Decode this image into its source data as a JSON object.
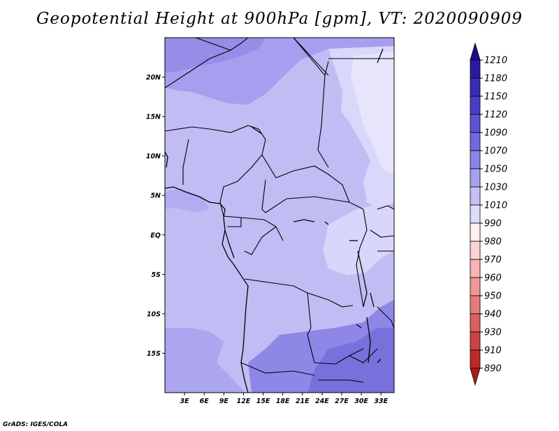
{
  "title": "Geopotential Height at 900hPa [gpm], VT: 2020090909",
  "credit": "GrADS: IGES/COLA",
  "map": {
    "lon_range": [
      0,
      35
    ],
    "lat_range": [
      -20,
      25
    ],
    "lon_ticks": [
      {
        "value": 3,
        "label": "3E"
      },
      {
        "value": 6,
        "label": "6E"
      },
      {
        "value": 9,
        "label": "9E"
      },
      {
        "value": 12,
        "label": "12E"
      },
      {
        "value": 15,
        "label": "15E"
      },
      {
        "value": 18,
        "label": "18E"
      },
      {
        "value": 21,
        "label": "21E"
      },
      {
        "value": 24,
        "label": "24E"
      },
      {
        "value": 27,
        "label": "27E"
      },
      {
        "value": 30,
        "label": "30E"
      },
      {
        "value": 33,
        "label": "33E"
      }
    ],
    "lat_ticks": [
      {
        "value": 20,
        "label": "20N"
      },
      {
        "value": 15,
        "label": "15N"
      },
      {
        "value": 10,
        "label": "10N"
      },
      {
        "value": 5,
        "label": "5N"
      },
      {
        "value": 0,
        "label": "EQ"
      },
      {
        "value": -5,
        "label": "5S"
      },
      {
        "value": -10,
        "label": "10S"
      },
      {
        "value": -15,
        "label": "15S"
      }
    ]
  },
  "colorbar": {
    "levels": [
      {
        "label": "1210",
        "color": "#1e0c8c"
      },
      {
        "label": "1180",
        "color": "#2a1aa0"
      },
      {
        "label": "1150",
        "color": "#3a2cb4"
      },
      {
        "label": "1120",
        "color": "#4a3ec4"
      },
      {
        "label": "1090",
        "color": "#5e54d2"
      },
      {
        "label": "1070",
        "color": "#7468dc"
      },
      {
        "label": "1050",
        "color": "#8c84e6"
      },
      {
        "label": "1030",
        "color": "#a8a2ee"
      },
      {
        "label": "1010",
        "color": "#c4c0f6"
      },
      {
        "label": "990",
        "color": "#dcdcfc"
      },
      {
        "label": "980",
        "color": "#fff0f0"
      },
      {
        "label": "970",
        "color": "#fcd2d2"
      },
      {
        "label": "960",
        "color": "#f6b4b4"
      },
      {
        "label": "950",
        "color": "#ee9898"
      },
      {
        "label": "940",
        "color": "#e47c7c"
      },
      {
        "label": "930",
        "color": "#da6060"
      },
      {
        "label": "910",
        "color": "#cc4444"
      },
      {
        "label": "890",
        "color": "#bc2a2a"
      }
    ],
    "top_color": "#1e0c8c",
    "bottom_color": "#b01c1c"
  }
}
